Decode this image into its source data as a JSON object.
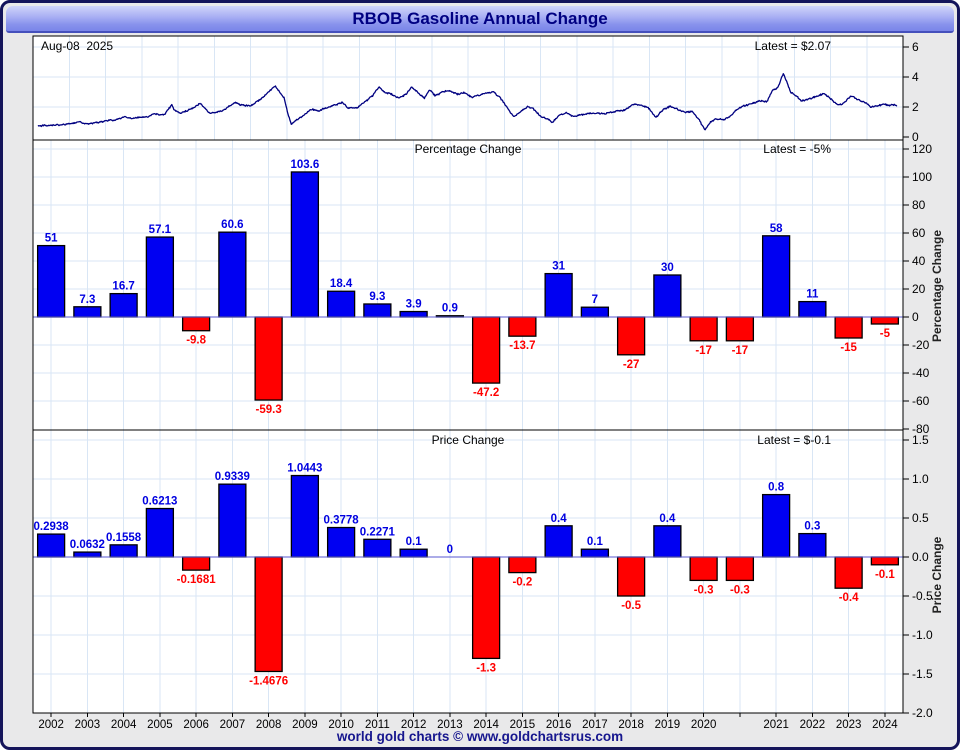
{
  "window": {
    "title": "RBOB Gasoline Annual Change",
    "footer": "world gold charts © www.goldchartsrus.com"
  },
  "colors": {
    "bar_positive": "#0000f2",
    "bar_negative": "#ff0000",
    "label_positive": "#0000e0",
    "label_negative": "#ff0000",
    "line": "#000080",
    "grid": "#d9e6f5",
    "zero_line": "#5a5ad2",
    "frame": "#000000",
    "panel_bg": "#ffffff"
  },
  "price_panel": {
    "date_label": "Aug-08  2025",
    "latest_label": "Latest = $2.07"
  },
  "pct_panel": {
    "title": "Percentage Change",
    "latest_label": "Latest = -5%",
    "axis_label": "Percentage Change"
  },
  "chg_panel": {
    "title": "Price Change",
    "latest_label": "Latest = $-0.1",
    "axis_label": "Price Change"
  },
  "x_axis": {
    "categories": [
      "2002",
      "2003",
      "2004",
      "2005",
      "2006",
      "2007",
      "2008",
      "2009",
      "2010",
      "2011",
      "2012",
      "2013",
      "2014",
      "2015",
      "2016",
      "2017",
      "2018",
      "2019",
      "2020",
      "",
      "2021",
      "2022",
      "2023",
      "2024"
    ]
  },
  "chart_data": [
    {
      "type": "line",
      "name": "rbob-price-history",
      "title": "RBOB Gasoline price 2002 - Aug 2025 (USD)",
      "x_range": [
        2002.0,
        2025.58
      ],
      "ylim": [
        0,
        7
      ],
      "ytick_values": [
        0,
        2,
        4,
        6
      ],
      "ytick_labels": [
        "0",
        "2",
        "4",
        "6"
      ],
      "latest_value": 2.07,
      "anchors": [
        [
          2002.0,
          0.72
        ],
        [
          2002.3,
          0.78
        ],
        [
          2002.6,
          0.82
        ],
        [
          2002.9,
          0.88
        ],
        [
          2003.15,
          1.02
        ],
        [
          2003.3,
          0.86
        ],
        [
          2003.6,
          0.95
        ],
        [
          2003.8,
          1.05
        ],
        [
          2004.1,
          1.15
        ],
        [
          2004.4,
          1.35
        ],
        [
          2004.6,
          1.22
        ],
        [
          2004.75,
          1.3
        ],
        [
          2005.0,
          1.35
        ],
        [
          2005.2,
          1.55
        ],
        [
          2005.45,
          1.45
        ],
        [
          2005.67,
          2.15
        ],
        [
          2005.75,
          1.75
        ],
        [
          2005.9,
          1.6
        ],
        [
          2006.2,
          1.85
        ],
        [
          2006.45,
          2.25
        ],
        [
          2006.7,
          1.6
        ],
        [
          2006.9,
          1.65
        ],
        [
          2007.1,
          1.8
        ],
        [
          2007.4,
          2.3
        ],
        [
          2007.6,
          2.1
        ],
        [
          2007.85,
          2.1
        ],
        [
          2008.0,
          2.35
        ],
        [
          2008.2,
          2.7
        ],
        [
          2008.5,
          3.4
        ],
        [
          2008.6,
          3.1
        ],
        [
          2008.75,
          2.6
        ],
        [
          2008.85,
          1.6
        ],
        [
          2008.95,
          0.85
        ],
        [
          2009.1,
          1.15
        ],
        [
          2009.3,
          1.45
        ],
        [
          2009.5,
          1.85
        ],
        [
          2009.7,
          1.75
        ],
        [
          2009.9,
          1.95
        ],
        [
          2010.1,
          2.1
        ],
        [
          2010.35,
          2.3
        ],
        [
          2010.5,
          1.95
        ],
        [
          2010.75,
          1.95
        ],
        [
          2011.0,
          2.4
        ],
        [
          2011.2,
          2.8
        ],
        [
          2011.35,
          3.35
        ],
        [
          2011.5,
          3.0
        ],
        [
          2011.7,
          2.85
        ],
        [
          2011.9,
          2.6
        ],
        [
          2012.1,
          2.85
        ],
        [
          2012.25,
          3.35
        ],
        [
          2012.45,
          2.9
        ],
        [
          2012.6,
          2.6
        ],
        [
          2012.75,
          3.15
        ],
        [
          2012.9,
          2.75
        ],
        [
          2013.1,
          3.0
        ],
        [
          2013.3,
          3.1
        ],
        [
          2013.5,
          2.85
        ],
        [
          2013.7,
          2.95
        ],
        [
          2013.9,
          2.65
        ],
        [
          2014.1,
          2.8
        ],
        [
          2014.3,
          2.95
        ],
        [
          2014.5,
          3.0
        ],
        [
          2014.7,
          2.55
        ],
        [
          2014.9,
          1.85
        ],
        [
          2015.05,
          1.35
        ],
        [
          2015.3,
          1.8
        ],
        [
          2015.45,
          2.05
        ],
        [
          2015.6,
          1.85
        ],
        [
          2015.8,
          1.35
        ],
        [
          2016.0,
          1.2
        ],
        [
          2016.1,
          0.95
        ],
        [
          2016.3,
          1.45
        ],
        [
          2016.5,
          1.6
        ],
        [
          2016.7,
          1.35
        ],
        [
          2016.9,
          1.5
        ],
        [
          2017.1,
          1.55
        ],
        [
          2017.3,
          1.6
        ],
        [
          2017.55,
          1.55
        ],
        [
          2017.7,
          1.65
        ],
        [
          2017.9,
          1.75
        ],
        [
          2018.1,
          1.8
        ],
        [
          2018.35,
          2.2
        ],
        [
          2018.55,
          2.1
        ],
        [
          2018.75,
          1.95
        ],
        [
          2018.95,
          1.3
        ],
        [
          2019.15,
          1.85
        ],
        [
          2019.35,
          2.05
        ],
        [
          2019.55,
          1.85
        ],
        [
          2019.75,
          1.65
        ],
        [
          2019.95,
          1.7
        ],
        [
          2020.15,
          1.1
        ],
        [
          2020.3,
          0.45
        ],
        [
          2020.45,
          1.0
        ],
        [
          2020.6,
          1.2
        ],
        [
          2020.8,
          1.15
        ],
        [
          2021.0,
          1.4
        ],
        [
          2021.2,
          1.9
        ],
        [
          2021.4,
          2.1
        ],
        [
          2021.6,
          2.25
        ],
        [
          2021.8,
          2.4
        ],
        [
          2022.0,
          2.35
        ],
        [
          2022.15,
          3.1
        ],
        [
          2022.3,
          3.3
        ],
        [
          2022.45,
          4.25
        ],
        [
          2022.55,
          3.6
        ],
        [
          2022.65,
          3.0
        ],
        [
          2022.8,
          2.75
        ],
        [
          2022.95,
          2.4
        ],
        [
          2023.1,
          2.5
        ],
        [
          2023.3,
          2.65
        ],
        [
          2023.55,
          2.9
        ],
        [
          2023.75,
          2.55
        ],
        [
          2023.95,
          2.1
        ],
        [
          2024.1,
          2.25
        ],
        [
          2024.3,
          2.75
        ],
        [
          2024.5,
          2.5
        ],
        [
          2024.7,
          2.3
        ],
        [
          2024.85,
          2.0
        ],
        [
          2025.0,
          2.05
        ],
        [
          2025.2,
          2.2
        ],
        [
          2025.35,
          2.1
        ],
        [
          2025.5,
          2.15
        ],
        [
          2025.58,
          2.07
        ]
      ]
    },
    {
      "type": "bar",
      "name": "percentage-change",
      "title": "Percentage Change",
      "categories": [
        "2002",
        "2003",
        "2004",
        "2005",
        "2006",
        "2007",
        "2008",
        "2009",
        "2010",
        "2011",
        "2012",
        "2013",
        "2014",
        "2015",
        "2016",
        "2017",
        "2018",
        "2019",
        "2020",
        "",
        "2021",
        "2022",
        "2023",
        "2024"
      ],
      "values": [
        51,
        7.3,
        16.7,
        57.1,
        -9.8,
        60.6,
        -59.3,
        103.6,
        18.4,
        9.3,
        3.9,
        0.9,
        -47.2,
        -13.7,
        31,
        7,
        -27,
        30,
        -17,
        -17,
        58,
        11,
        -15,
        -5
      ],
      "labels": [
        "51",
        "7.3",
        "16.7",
        "57.1",
        "-9.8",
        "60.6",
        "-59.3",
        "103.6",
        "18.4",
        "9.3",
        "3.9",
        "0.9",
        "-47.2",
        "-13.7",
        "31",
        "7",
        "-27",
        "30",
        "-17",
        "-17",
        "58",
        "11",
        "-15",
        "-5"
      ],
      "ylim": [
        -80,
        130
      ],
      "ytick_values": [
        120,
        100,
        80,
        60,
        40,
        20,
        0,
        -20,
        -40,
        -60,
        -80
      ],
      "ytick_labels": [
        "120",
        "100",
        "80",
        "60",
        "40",
        "20",
        "0",
        "-20",
        "-40",
        "-60",
        "-80"
      ],
      "ylabel": "Percentage Change",
      "latest_value": -5
    },
    {
      "type": "bar",
      "name": "price-change",
      "title": "Price Change",
      "categories": [
        "2002",
        "2003",
        "2004",
        "2005",
        "2006",
        "2007",
        "2008",
        "2009",
        "2010",
        "2011",
        "2012",
        "2013",
        "2014",
        "2015",
        "2016",
        "2017",
        "2018",
        "2019",
        "2020",
        "",
        "2021",
        "2022",
        "2023",
        "2024"
      ],
      "values": [
        0.2938,
        0.0632,
        0.1558,
        0.6213,
        -0.1681,
        0.9339,
        -1.4676,
        1.0443,
        0.3778,
        0.2271,
        0.1,
        0,
        -1.3,
        -0.2,
        0.4,
        0.1,
        -0.5,
        0.4,
        -0.3,
        -0.3,
        0.8,
        0.3,
        -0.4,
        -0.1
      ],
      "labels": [
        "0.2938",
        "0.0632",
        "0.1558",
        "0.6213",
        "-0.1681",
        "0.9339",
        "-1.4676",
        "1.0443",
        "0.3778",
        "0.2271",
        "0.1",
        "0",
        "-1.3",
        "-0.2",
        "0.4",
        "0.1",
        "-0.5",
        "0.4",
        "-0.3",
        "-0.3",
        "0.8",
        "0.3",
        "-0.4",
        "-0.1"
      ],
      "ylim": [
        -2.0,
        1.6
      ],
      "ytick_values": [
        1.5,
        1.0,
        0.5,
        0.0,
        -0.5,
        -1.0,
        -1.5,
        -2.0
      ],
      "ytick_labels": [
        "1.5",
        "1.0",
        "0.5",
        "0.0",
        "-0.5",
        "-1.0",
        "-1.5",
        "-2.0"
      ],
      "ylabel": "Price Change",
      "latest_value": -0.1
    }
  ]
}
